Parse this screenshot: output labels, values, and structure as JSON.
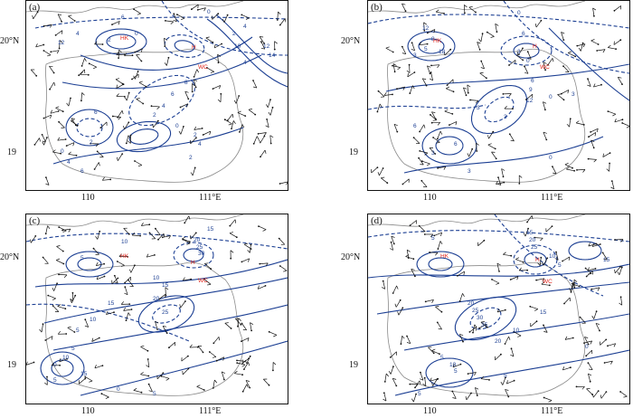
{
  "panels": [
    {
      "id": "a",
      "label": "(a)",
      "values": [
        "6",
        "0",
        "4",
        "2",
        "0",
        "12",
        "4",
        "2",
        "10",
        "12",
        "14",
        "4",
        "8",
        "6",
        "4",
        "2",
        "0",
        "2",
        "4",
        "6",
        "2",
        "0",
        "4",
        "6",
        "2"
      ],
      "cities": [
        "HK",
        "H",
        "WC"
      ]
    },
    {
      "id": "b",
      "label": "(b)",
      "values": [
        "0",
        "12",
        "8",
        "5",
        "3",
        "18",
        "6",
        "3",
        "0",
        "6",
        "9",
        "12",
        "3",
        "3",
        "0",
        "3",
        "6",
        "3",
        "6",
        "0",
        "3"
      ],
      "cities": [
        "HK",
        "H",
        "WC"
      ]
    },
    {
      "id": "c",
      "label": "(c)",
      "values": [
        "15",
        "10",
        "5",
        "20",
        "25",
        "30",
        "10",
        "15",
        "20",
        "25",
        "15",
        "10",
        "5",
        "5",
        "10",
        "15",
        "0",
        "5",
        "0",
        "5"
      ],
      "cities": [
        "HK",
        "H",
        "WC"
      ]
    },
    {
      "id": "d",
      "label": "(d)",
      "values": [
        "5",
        "15",
        "20",
        "25",
        "10",
        "15",
        "5",
        "20",
        "25",
        "30",
        "35",
        "20",
        "5",
        "10",
        "5",
        "15",
        "10",
        "5",
        "5",
        "0"
      ],
      "cities": [
        "HK",
        "H",
        "WC"
      ]
    }
  ],
  "axes": {
    "y_top": "20°N",
    "y_bottom": "19",
    "x_left": "110",
    "x_right": "111°E"
  }
}
